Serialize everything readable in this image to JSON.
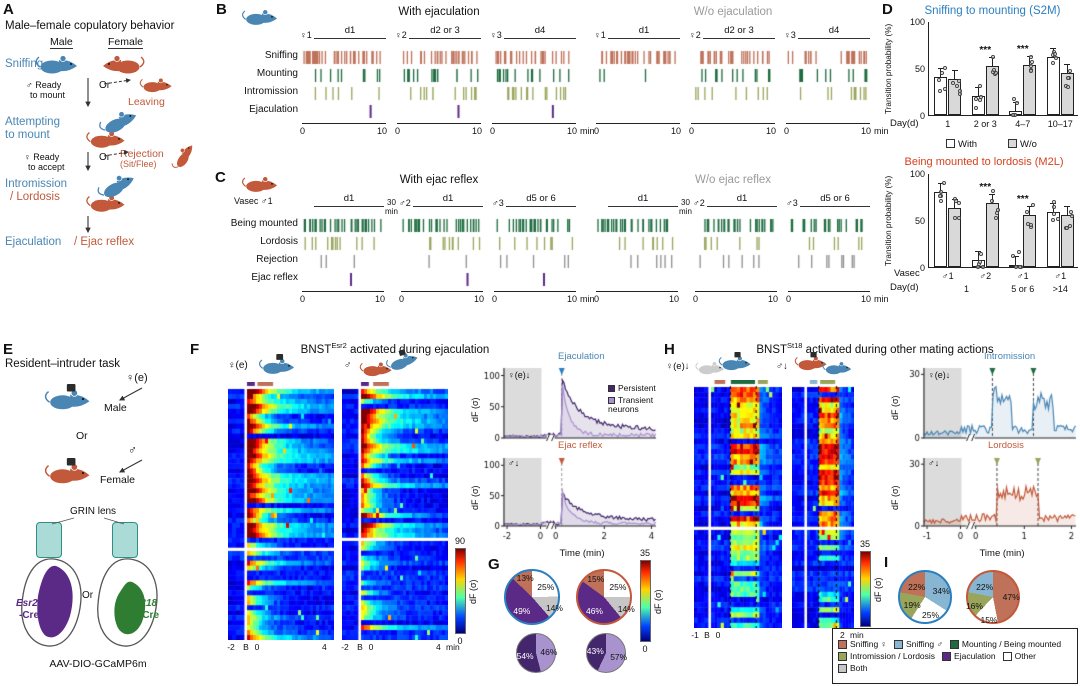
{
  "colors": {
    "blue": "#4a86b4",
    "orange": "#c2593a",
    "sniff_f": "#bf7159",
    "sniff_m": "#88b6d2",
    "mount": "#1e6b40",
    "intro": "#9aa55c",
    "ejac": "#5b2a86",
    "persistent": "#43266b",
    "transient": "#a893cf",
    "other": "#ffffff",
    "both": "#c6c6c6",
    "reject": "#8f8f8f",
    "s2m": "#2a7fc1",
    "m2l": "#d6401d",
    "teal": "#aadbd6",
    "st18": "#2e7d32",
    "grayMouse": "#cccccc"
  },
  "A": {
    "label": "A",
    "title": "Male–female copulatory behavior",
    "male": "Male",
    "female": "Female",
    "sniffing": "Sniffing",
    "ready_mount_1": "♂ Ready",
    "ready_mount_2": "to mount",
    "or": "Or",
    "leaving": "Leaving",
    "attempting_1": "Attempting",
    "attempting_2": "to mount",
    "ready_accept_1": "♀ Ready",
    "ready_accept_2": "to accept",
    "rejection_1": "Rejection",
    "rejection_2": "(Sit/Flee)",
    "intromission": "Intromission",
    "lordosis": "/ Lordosis",
    "ejaculation": "Ejaculation",
    "ejac_reflex": "/ Ejac reflex"
  },
  "B": {
    "label": "B",
    "title_with": "With ejaculation",
    "title_wo": "W/o ejaculation",
    "rows": [
      "Sniffing",
      "Mounting",
      "Intromission",
      "Ejaculation"
    ],
    "row_colors": [
      "sniff_f",
      "mount",
      "intro",
      "ejac"
    ],
    "sessions": [
      {
        "partner": "♀1",
        "day": "d1"
      },
      {
        "partner": "♀2",
        "day": "d2 or 3"
      },
      {
        "partner": "♀3",
        "day": "d4"
      }
    ],
    "tick0": "0",
    "tick1": "10",
    "unit": "min",
    "raster_with": [
      [
        42,
        9,
        6,
        1
      ],
      [
        32,
        16,
        13,
        1
      ],
      [
        24,
        14,
        16,
        1
      ]
    ],
    "raster_wo": [
      [
        40,
        3,
        0,
        0
      ],
      [
        30,
        12,
        9,
        0
      ],
      [
        22,
        12,
        10,
        0
      ]
    ]
  },
  "C": {
    "label": "C",
    "vasec": "Vasec ♂1",
    "title_with": "With ejac reflex",
    "title_wo": "W/o ejac reflex",
    "gap_label_1": "30",
    "gap_label_2": "min",
    "rows": [
      "Being mounted",
      "Lordosis",
      "Rejection",
      "Ejac reflex"
    ],
    "row_colors": [
      "mount",
      "intro",
      "reject",
      "ejac"
    ],
    "sessions": [
      {
        "partner": "",
        "day": "d1"
      },
      {
        "partner": "♂2",
        "day": "d1"
      },
      {
        "partner": "♂3",
        "day": "d5 or 6"
      }
    ],
    "tick0": "0",
    "tick1": "10",
    "unit": "min",
    "raster_with": [
      [
        34,
        12,
        3,
        1
      ],
      [
        30,
        10,
        3,
        1
      ],
      [
        28,
        9,
        5,
        1
      ]
    ],
    "raster_wo": [
      [
        32,
        8,
        6,
        0
      ],
      [
        28,
        7,
        6,
        0
      ],
      [
        24,
        6,
        8,
        0
      ]
    ]
  },
  "D": {
    "label": "D",
    "legend_with": "With",
    "legend_wo": "W/o"
  },
  "chart_data": [
    {
      "type": "bar",
      "id": "s2m",
      "title": "Sniffing to mounting (S2M)",
      "ylabel": "Transition probability (%)",
      "ylim": [
        0,
        100
      ],
      "yticks": [
        0,
        50,
        100
      ],
      "xlabel": "Day(d)",
      "categories": [
        "1",
        "2 or 3",
        "4–7",
        "10–17"
      ],
      "series": [
        {
          "name": "With",
          "values": [
            40,
            20,
            4,
            62
          ]
        },
        {
          "name": "W/o",
          "values": [
            38,
            52,
            53,
            45
          ]
        }
      ],
      "significance": [
        {
          "group": 1,
          "label": "***"
        },
        {
          "group": 2,
          "label": "***"
        }
      ]
    },
    {
      "type": "bar",
      "id": "m2l",
      "title": "Being mounted to lordosis (M2L)",
      "ylabel": "Transition probability (%)",
      "ylim": [
        0,
        100
      ],
      "yticks": [
        0,
        50,
        100
      ],
      "xlabel": "Day(d)",
      "x2label": "Vasec",
      "categories": [
        "♂1",
        "♂2",
        "♂1",
        "♂1"
      ],
      "day_rows": [
        {
          "label": "1",
          "span": [
            0,
            1
          ]
        },
        {
          "label": "5 or 6",
          "span": [
            2,
            2
          ]
        },
        {
          "label": ">14",
          "span": [
            3,
            3
          ]
        }
      ],
      "series": [
        {
          "name": "With",
          "values": [
            80,
            7,
            2,
            58
          ]
        },
        {
          "name": "W/o",
          "values": [
            63,
            68,
            55,
            55
          ]
        }
      ],
      "significance": [
        {
          "group": 1,
          "label": "***"
        },
        {
          "group": 2,
          "label": "***"
        }
      ]
    }
  ],
  "E": {
    "label": "E",
    "title": "Resident–intruder task",
    "intruder_f": "♀(e)",
    "male": "Male",
    "or1": "Or",
    "intruder_m": "♂",
    "female": "Female",
    "grin": "GRIN lens",
    "or2": "Or",
    "esr2": "Esr2",
    "cre1": "-Cre",
    "st18": "St18",
    "cre2": "-Cre",
    "aav": "AAV-DIO-GCaMP6m"
  },
  "F": {
    "label": "F",
    "title_pre": "BNST",
    "title_sup": "Esr2",
    "title_post": " activated during ejaculation",
    "hm1_head": "♀(e)",
    "hm2_head": "♂",
    "xticks_left": [
      "-2",
      "B",
      "0"
    ],
    "xtick_right": "4",
    "unit": "min",
    "cb1_max": "90",
    "cb1_min": "0",
    "cb1_label": "dF (σ)",
    "cb2_max": "35",
    "cb2_min": "0",
    "cb2_label": "dF (σ)",
    "trace1_head": "♀(e)↓",
    "trace1_event": "Ejaculation",
    "legend_persistent": "Persistent",
    "legend_transient": "Transient neurons",
    "trace2_head": "♂↓",
    "trace2_event": "Ejac reflex",
    "ylabel": "dF (σ)",
    "xlabel": "Time (min)"
  },
  "G": {
    "label": "G",
    "pie1": {
      "ring": "s2m",
      "slices": [
        {
          "label": "25%",
          "color": "other"
        },
        {
          "label": "14%",
          "color": "both"
        },
        {
          "label": "49%",
          "color": "ejac"
        },
        {
          "label": "13%",
          "color": "sniff_f"
        }
      ]
    },
    "pie2": {
      "ring": "orange",
      "slices": [
        {
          "label": "25%",
          "color": "other"
        },
        {
          "label": "14%",
          "color": "both"
        },
        {
          "label": "46%",
          "color": "ejac"
        },
        {
          "label": "15%",
          "color": "sniff_f"
        }
      ]
    },
    "pie3": {
      "ring": "#777",
      "slices": [
        {
          "label": "46%",
          "color": "transient"
        },
        {
          "label": "54%",
          "color": "persistent"
        }
      ]
    },
    "pie4": {
      "ring": "#777",
      "slices": [
        {
          "label": "57%",
          "color": "transient"
        },
        {
          "label": "43%",
          "color": "persistent"
        }
      ]
    }
  },
  "H": {
    "label": "H",
    "title_pre": "BNST",
    "title_sup": "St18",
    "title_post": " activated during other mating actions",
    "hm1_head": "♀(e)↓",
    "hm2_head": "♂↓",
    "xticks_left": [
      "-1",
      "B",
      "0"
    ],
    "xtick_right": "2",
    "unit": "min",
    "cb_max": "35",
    "cb_min": "0",
    "cb_label": "dF (σ)",
    "trace1_head": "♀(e)↓",
    "trace1_event": "Intromission",
    "trace2_head": "♂↓",
    "trace2_event": "Lordosis",
    "ylabel": "dF (σ)",
    "xlabel": "Time (min)"
  },
  "I": {
    "label": "I",
    "pie1": {
      "ring": "s2m",
      "slices": [
        {
          "label": "34%",
          "color": "sniff_m"
        },
        {
          "label": "25%",
          "color": "other"
        },
        {
          "label": "19%",
          "color": "intro"
        },
        {
          "label": "22%",
          "color": "sniff_f"
        }
      ]
    },
    "pie2": {
      "ring": "orange",
      "slices": [
        {
          "label": "47%",
          "color": "sniff_f"
        },
        {
          "label": "15%",
          "color": "other"
        },
        {
          "label": "16%",
          "color": "intro"
        },
        {
          "label": "22%",
          "color": "sniff_m"
        }
      ]
    }
  },
  "legend": {
    "items": [
      {
        "label": "Sniffing ♀",
        "color": "sniff_f"
      },
      {
        "label": "Sniffing ♂",
        "color": "sniff_m"
      },
      {
        "label": "Mounting / Being mounted",
        "color": "mount"
      },
      {
        "label": "Intromission / Lordosis",
        "color": "intro"
      },
      {
        "label": "Ejaculation",
        "color": "ejac"
      },
      {
        "label": "Other",
        "color": "other"
      },
      {
        "label": "Both",
        "color": "both"
      }
    ]
  },
  "render_params": {
    "heatmaps": {
      "f1": {
        "rows": 50,
        "cols": 29,
        "preW": 16,
        "onset": 0,
        "decay": 5,
        "split": 0.64,
        "seed": 7,
        "amp": 1.0,
        "strip": [
          [
            0.0,
            0.09,
            "ejac"
          ],
          [
            0.12,
            0.3,
            "sniff_f"
          ]
        ]
      },
      "f2": {
        "rows": 50,
        "cols": 29,
        "preW": 16,
        "onset": 0,
        "decay": 5,
        "split": 0.6,
        "seed": 13,
        "amp": 0.85,
        "strip": [
          [
            0.0,
            0.09,
            "ejac"
          ],
          [
            0.14,
            0.32,
            "sniff_f"
          ]
        ]
      },
      "h1": {
        "rows": 46,
        "cols": 22,
        "preW": 14,
        "onset": 6,
        "window": 8,
        "decay": 4,
        "split": 0.6,
        "seed": 23,
        "amp": 0.8,
        "strip": [
          [
            0.05,
            0.2,
            "sniff_f"
          ],
          [
            0.28,
            0.62,
            "mount"
          ],
          [
            0.66,
            0.8,
            "intro"
          ]
        ]
      },
      "h2": {
        "rows": 46,
        "cols": 16,
        "preW": 12,
        "onset": 4,
        "window": 6,
        "decay": 4,
        "split": 0.6,
        "seed": 31,
        "amp": 0.8,
        "strip": [
          [
            0.06,
            0.22,
            "sniff_m"
          ],
          [
            0.28,
            0.6,
            "intro"
          ]
        ]
      }
    },
    "traces": {
      "f1": {
        "seed": 41,
        "ymax": 112,
        "yticks": [
          0,
          50,
          100
        ],
        "gray": 0.24,
        "brk": 0.3,
        "onset": 0.38,
        "marker": "#2a7fc1",
        "lines": [
          {
            "color": "persistent",
            "base": 5,
            "noise": 7,
            "peak": 70,
            "decay": 0.1,
            "sustain": 20
          },
          {
            "color": "transient",
            "base": 4,
            "noise": 6,
            "peak": 88,
            "decay": 0.045,
            "sustain": 2
          }
        ]
      },
      "f2": {
        "seed": 42,
        "ymax": 112,
        "yticks": [
          0,
          50,
          100
        ],
        "gray": 0.24,
        "brk": 0.3,
        "onset": 0.38,
        "marker": "#c2593a",
        "showx": true,
        "xticks": [
          [
            "-2",
            0.02
          ],
          [
            "0",
            0.24
          ],
          [
            "0",
            0.34
          ],
          [
            "2",
            0.66
          ],
          [
            "4",
            0.97
          ]
        ],
        "lines": [
          {
            "color": "persistent",
            "base": 5,
            "noise": 6,
            "peak": 38,
            "decay": 0.1,
            "sustain": 12
          },
          {
            "color": "transient",
            "base": 4,
            "noise": 5,
            "peak": 55,
            "decay": 0.05,
            "sustain": 2
          }
        ]
      },
      "h1": {
        "seed": 43,
        "ymax": 33,
        "yticks": [
          0,
          30
        ],
        "gray": 0.24,
        "brk": 0.3,
        "marker": "#1e6b40",
        "dashes": [
          0.45,
          0.72
        ],
        "lines": [
          {
            "color": "#4a86b4",
            "base": 4,
            "noise": 4,
            "bumps": [
              [
                0.45,
                0.58,
                15
              ],
              [
                0.72,
                0.85,
                13
              ]
            ]
          }
        ]
      },
      "h2": {
        "seed": 44,
        "ymax": 33,
        "yticks": [
          0,
          30
        ],
        "gray": 0.24,
        "brk": 0.3,
        "marker": "#9aa55c",
        "showx": true,
        "dashes": [
          0.48,
          0.75
        ],
        "xticks": [
          [
            "-1",
            0.02
          ],
          [
            "0",
            0.24
          ],
          [
            "0",
            0.34
          ],
          [
            "1",
            0.66
          ],
          [
            "2",
            0.97
          ]
        ],
        "lines": [
          {
            "color": "#c2593a",
            "base": 4,
            "noise": 4,
            "bumps": [
              [
                0.48,
                0.75,
                12
              ]
            ]
          }
        ]
      }
    }
  }
}
